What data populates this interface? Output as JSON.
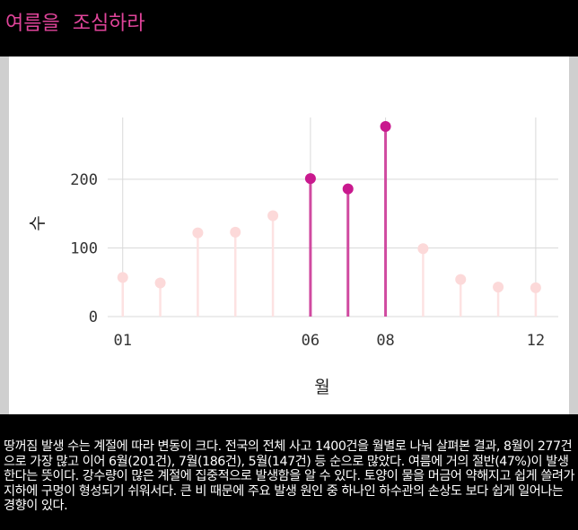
{
  "title": "여름을  조심하라",
  "caption": "땅꺼짐 발생 수는 계절에 따라 변동이 크다. 전국의 전체 사고 1400건을 월별로 나눠 살펴본 결과, 8월이 277건으로 가장 많고 이어 6월(201건), 7월(186건), 5월(147건) 등 순으로 많았다. 여름에 거의 절반(47%)이 발생한다는 뜻이다. 강수량이 많은 계절에 집중적으로 발생함을 알 수 있다. 토양이 물을 머금어 약해지고 쉽게 쓸려가 지하에 구멍이 형성되기 쉬워서다. 큰 비 때문에 주요 발생 원인 중 하나인 하수관의 손상도 보다 쉽게 일어나는 경향이 있다.",
  "colors": {
    "highlight": "#c9198e",
    "highlight_stem": "#d04aa0",
    "muted": "#fcd9d9",
    "muted_stem": "#fde2e2",
    "grid": "#d9d9d9",
    "title": "#e0449a"
  },
  "chart_data": {
    "type": "lollipop",
    "xlabel": "월",
    "ylabel": "수",
    "x": [
      1,
      2,
      3,
      4,
      5,
      6,
      7,
      8,
      9,
      10,
      11,
      12
    ],
    "values": [
      57,
      49,
      122,
      123,
      147,
      201,
      186,
      277,
      99,
      54,
      43,
      42
    ],
    "highlighted_months": [
      6,
      7,
      8
    ],
    "xticks": [
      1,
      6,
      8,
      12
    ],
    "xtick_labels": [
      "01",
      "06",
      "08",
      "12"
    ],
    "yticks": [
      0,
      100,
      200
    ],
    "ytick_labels": [
      "0",
      "100",
      "200"
    ],
    "xlim": [
      0.6,
      12.6
    ],
    "ylim": [
      0,
      290
    ],
    "grid": true
  }
}
